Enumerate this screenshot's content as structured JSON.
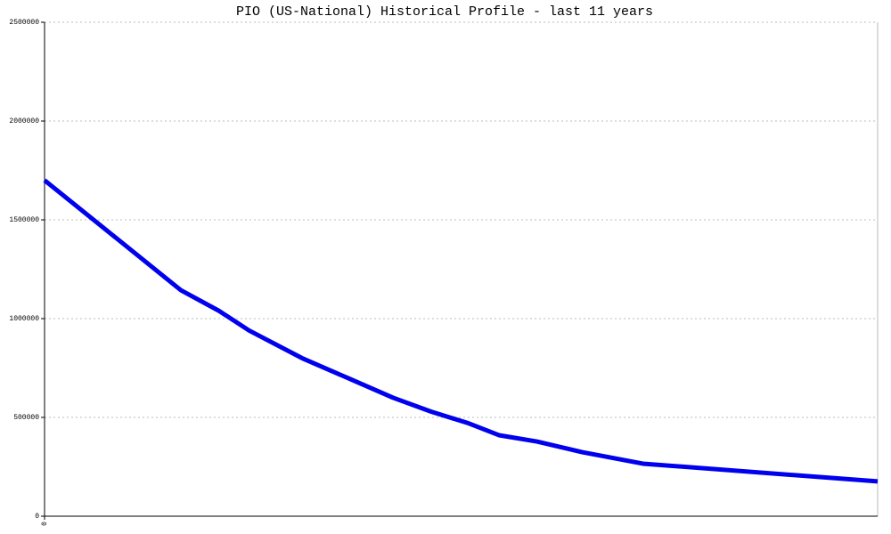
{
  "chart_data": {
    "type": "line",
    "title": "PIO (US-National) Historical Profile - last 11 years",
    "x": [
      0,
      1.8,
      2.3,
      2.7,
      3.4,
      4.0,
      4.6,
      5.1,
      5.6,
      6.0,
      6.5,
      7.1,
      7.9,
      11
    ],
    "series": [
      {
        "name": "PIO",
        "color": "#0000ee",
        "values": [
          1700000,
          1144000,
          1040000,
          940000,
          800000,
          700000,
          600000,
          530000,
          470000,
          410000,
          378000,
          324000,
          266000,
          176000
        ]
      }
    ],
    "xlim": [
      0,
      11
    ],
    "xticks": [
      0
    ],
    "ylim": [
      0,
      2500000
    ],
    "yticks": [
      0,
      500000,
      1000000,
      1500000,
      2000000,
      2500000
    ],
    "grid": true
  }
}
